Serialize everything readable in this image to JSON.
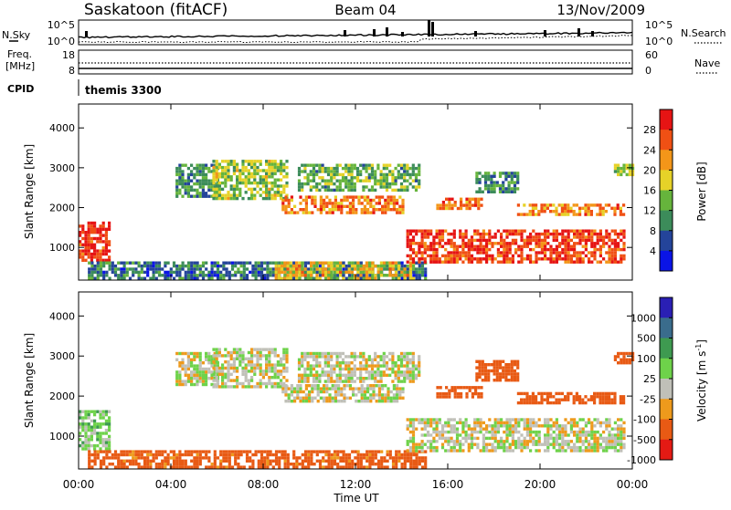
{
  "header": {
    "station": "Saskatoon (fitACF)",
    "beam": "Beam 04",
    "date": "13/Nov/2009"
  },
  "panels": {
    "nsky": {
      "left_label": "N.Sky",
      "left_ticks": [
        "10^5",
        "10^0"
      ],
      "right_label": "N.Search",
      "right_ticks": [
        "10^5",
        "10^0"
      ],
      "right_legend_style": "dotted"
    },
    "freq": {
      "left_label_line1": "Freq.",
      "left_label_line2": "[MHz]",
      "left_ticks": [
        "18",
        "8"
      ],
      "right_label": "Nave",
      "right_ticks": [
        "60",
        "0"
      ],
      "right_legend_style": "dotted"
    },
    "cpid": {
      "label": "CPID",
      "value": "themis 3300"
    }
  },
  "colors": {
    "power_scale": [
      "#0a14e6",
      "#24449a",
      "#3c8c5a",
      "#66b43c",
      "#e6d228",
      "#f39619",
      "#f05014",
      "#e61414"
    ],
    "velocity_scale": [
      "#2a1fb4",
      "#3a6c8c",
      "#3e9a50",
      "#6ed24a",
      "#c0c0b8",
      "#ee9a1c",
      "#e85a14",
      "#e41a14"
    ]
  },
  "chart_data": [
    {
      "type": "heatmap",
      "title": "",
      "xlabel": "Time UT",
      "ylabel": "Slant Range [km]",
      "x_ticks": [
        "00:00",
        "04:00",
        "08:00",
        "12:00",
        "16:00",
        "20:00",
        "00:00"
      ],
      "x_range_hours": [
        0,
        24
      ],
      "ylim": [
        180,
        4600
      ],
      "y_ticks": [
        1000,
        2000,
        3000,
        4000
      ],
      "colorbar": {
        "label": "Power [dB]",
        "ticks": [
          "28",
          "24",
          "20",
          "16",
          "12",
          "8",
          "4"
        ],
        "range": [
          0,
          30
        ]
      },
      "echo_regions": [
        {
          "t_start": 0.0,
          "t_end": 1.3,
          "r_min": 650,
          "r_max": 1650,
          "value": 27
        },
        {
          "t_start": 0.4,
          "t_end": 15.0,
          "r_min": 250,
          "r_max": 650,
          "value": 8
        },
        {
          "t_start": 8.5,
          "t_end": 14.5,
          "r_min": 250,
          "r_max": 650,
          "value": 18
        },
        {
          "t_start": 4.2,
          "t_end": 6.0,
          "r_min": 2300,
          "r_max": 3100,
          "value": 10
        },
        {
          "t_start": 5.8,
          "t_end": 9.0,
          "r_min": 2200,
          "r_max": 3200,
          "value": 14
        },
        {
          "t_start": 8.8,
          "t_end": 14.0,
          "r_min": 1900,
          "r_max": 2300,
          "value": 22
        },
        {
          "t_start": 9.5,
          "t_end": 14.8,
          "r_min": 2400,
          "r_max": 3100,
          "value": 12
        },
        {
          "t_start": 14.2,
          "t_end": 23.7,
          "r_min": 650,
          "r_max": 1450,
          "value": 26
        },
        {
          "t_start": 15.5,
          "t_end": 17.5,
          "r_min": 1950,
          "r_max": 2250,
          "value": 23
        },
        {
          "t_start": 17.2,
          "t_end": 19.0,
          "r_min": 2400,
          "r_max": 2900,
          "value": 10
        },
        {
          "t_start": 19.0,
          "t_end": 23.6,
          "r_min": 1800,
          "r_max": 2100,
          "value": 22
        },
        {
          "t_start": 23.2,
          "t_end": 24.0,
          "r_min": 2800,
          "r_max": 3100,
          "value": 14
        }
      ]
    },
    {
      "type": "heatmap",
      "title": "",
      "xlabel": "Time UT",
      "ylabel": "Slant Range [km]",
      "x_ticks": [
        "00:00",
        "04:00",
        "08:00",
        "12:00",
        "16:00",
        "20:00",
        "00:00"
      ],
      "x_range_hours": [
        0,
        24
      ],
      "ylim": [
        180,
        4600
      ],
      "y_ticks": [
        1000,
        2000,
        3000,
        4000
      ],
      "colorbar": {
        "label": "Velocity [m s^-1]",
        "ticks": [
          "1000",
          "500",
          "100",
          "25",
          "-25",
          "-100",
          "-500",
          "-1000"
        ],
        "range": [
          -1000,
          1000
        ]
      },
      "echo_regions": [
        {
          "t_start": 0.0,
          "t_end": 1.3,
          "r_min": 650,
          "r_max": 1650,
          "value": 60
        },
        {
          "t_start": 0.4,
          "t_end": 15.0,
          "r_min": 250,
          "r_max": 650,
          "value": -150
        },
        {
          "t_start": 4.2,
          "t_end": 6.0,
          "r_min": 2300,
          "r_max": 3100,
          "value": 0
        },
        {
          "t_start": 5.8,
          "t_end": 9.0,
          "r_min": 2200,
          "r_max": 3200,
          "value": 0
        },
        {
          "t_start": 8.8,
          "t_end": 14.0,
          "r_min": 1900,
          "r_max": 2300,
          "value": 0
        },
        {
          "t_start": 9.5,
          "t_end": 14.8,
          "r_min": 2400,
          "r_max": 3100,
          "value": 0
        },
        {
          "t_start": 14.2,
          "t_end": 23.7,
          "r_min": 650,
          "r_max": 1450,
          "value": 0
        },
        {
          "t_start": 15.5,
          "t_end": 17.5,
          "r_min": 1950,
          "r_max": 2250,
          "value": -300
        },
        {
          "t_start": 17.2,
          "t_end": 19.0,
          "r_min": 2400,
          "r_max": 2900,
          "value": -300
        },
        {
          "t_start": 19.0,
          "t_end": 23.6,
          "r_min": 1800,
          "r_max": 2100,
          "value": -300
        },
        {
          "t_start": 23.2,
          "t_end": 24.0,
          "r_min": 2800,
          "r_max": 3100,
          "value": -300
        }
      ]
    }
  ]
}
